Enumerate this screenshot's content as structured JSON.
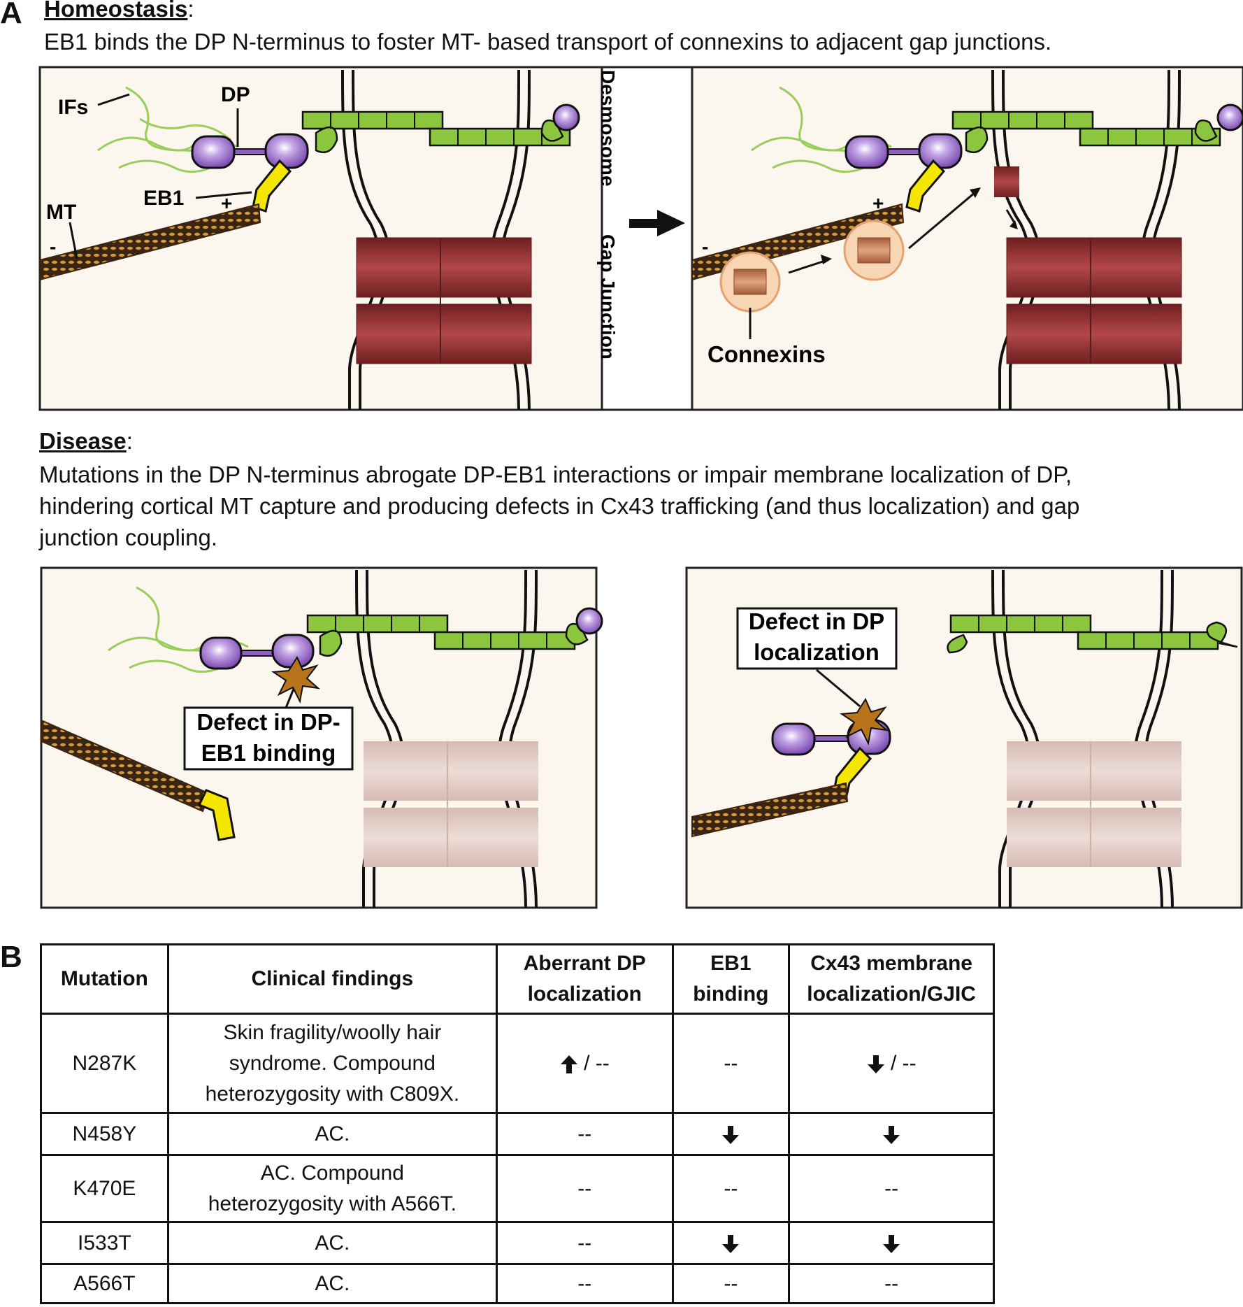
{
  "panelA": {
    "letter": "A",
    "homeostasis": {
      "heading": "Homeostasis",
      "caption": "EB1 binds the DP N-terminus to foster MT- based transport of connexins to adjacent gap junctions.",
      "labels": {
        "ifs": "IFs",
        "dp": "DP",
        "eb1": "EB1",
        "mt": "MT",
        "plus": "+",
        "minus": "-",
        "desmosome": "Desmosome",
        "gap_junction": "Gap Junction",
        "connexins": "Connexins"
      }
    },
    "disease": {
      "heading": "Disease",
      "caption_lines": [
        "Mutations in the DP N-terminus abrogate DP-EB1 interactions or impair membrane localization of DP,",
        "hindering cortical MT capture and producing defects in Cx43 trafficking (and thus localization) and gap",
        "junction coupling."
      ],
      "defect_binding_lines": [
        "Defect in DP-",
        "EB1 binding"
      ],
      "defect_localization_lines": [
        "Defect in DP",
        "localization"
      ]
    }
  },
  "panelB": {
    "letter": "B",
    "headers": [
      [
        "Mutation"
      ],
      [
        "Clinical findings"
      ],
      [
        "Aberrant DP",
        "localization"
      ],
      [
        "EB1",
        "binding"
      ],
      [
        "Cx43 membrane",
        "localization/GJIC"
      ]
    ],
    "rows": [
      {
        "mutation": "N287K",
        "findings": [
          "Skin fragility/woolly hair",
          "syndrome. Compound",
          "heterozygosity with C809X."
        ],
        "dp_localization": {
          "arrow": "up",
          "text": "/ --"
        },
        "eb1_binding": {
          "arrow": "none",
          "text": "--"
        },
        "cx43": {
          "arrow": "down",
          "text": "/ --"
        }
      },
      {
        "mutation": "N458Y",
        "findings": [
          "AC."
        ],
        "dp_localization": {
          "arrow": "none",
          "text": "--"
        },
        "eb1_binding": {
          "arrow": "down",
          "text": ""
        },
        "cx43": {
          "arrow": "down",
          "text": ""
        }
      },
      {
        "mutation": "K470E",
        "findings": [
          "AC. Compound",
          "heterozygosity with A566T."
        ],
        "dp_localization": {
          "arrow": "none",
          "text": "--"
        },
        "eb1_binding": {
          "arrow": "none",
          "text": "--"
        },
        "cx43": {
          "arrow": "none",
          "text": "--"
        }
      },
      {
        "mutation": "I533T",
        "findings": [
          "AC."
        ],
        "dp_localization": {
          "arrow": "none",
          "text": "--"
        },
        "eb1_binding": {
          "arrow": "down",
          "text": ""
        },
        "cx43": {
          "arrow": "down",
          "text": ""
        }
      },
      {
        "mutation": "A566T",
        "findings": [
          "AC."
        ],
        "dp_localization": {
          "arrow": "none",
          "text": "--"
        },
        "eb1_binding": {
          "arrow": "none",
          "text": "--"
        },
        "cx43": {
          "arrow": "none",
          "text": "--"
        }
      }
    ]
  },
  "colors": {
    "panel_bg": "#fbf7ef",
    "desmoplakin": "#8e5fc0",
    "plakin_green": "#8cc63f",
    "if_green": "#9acd5a",
    "eb1_yellow": "#f5e600",
    "connexon_red": "#8b2a2a",
    "connexon_faded": "#dfc7bf",
    "microtubule": "#5a3a1a",
    "defect_star": "#b8741a"
  }
}
